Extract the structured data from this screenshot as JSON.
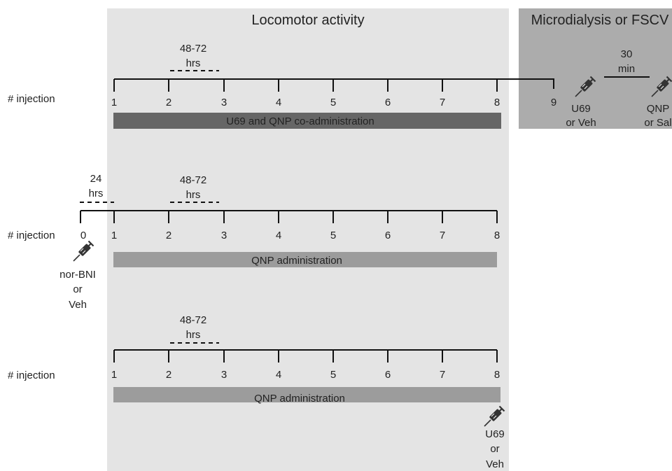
{
  "titles": {
    "locomotor": "Locomotor activity",
    "micro": "Microdialysis or FSCV"
  },
  "panel1": {
    "axis_label": "# injection",
    "interval": [
      "48-72",
      "hrs"
    ],
    "ticks": [
      "1",
      "2",
      "3",
      "4",
      "5",
      "6",
      "7",
      "8"
    ],
    "extra_tick": "9",
    "bar_label": "U69 and QNP co-administration",
    "micro_interval": [
      "30",
      "min"
    ],
    "drug1": [
      "U69",
      "or Veh"
    ],
    "drug2": [
      "QNP",
      "or Sal"
    ]
  },
  "panel2": {
    "axis_label": "# injection",
    "pre_interval": [
      "24",
      "hrs"
    ],
    "interval": [
      "48-72",
      "hrs"
    ],
    "ticks": [
      "0",
      "1",
      "2",
      "3",
      "4",
      "5",
      "6",
      "7",
      "8"
    ],
    "bar_label": "QNP administration",
    "drug": [
      "nor-BNI",
      "or",
      "Veh"
    ]
  },
  "panel3": {
    "axis_label": "# injection",
    "interval": [
      "48-72",
      "hrs"
    ],
    "ticks": [
      "1",
      "2",
      "3",
      "4",
      "5",
      "6",
      "7",
      "8"
    ],
    "bar_label": "QNP administration",
    "drug": [
      "U69",
      "or",
      "Veh"
    ]
  },
  "colors": {
    "locomotor_bg": "#e4e4e4",
    "micro_bg": "#acacac",
    "dark_bar": "#666666",
    "light_bar": "#9c9c9c",
    "syringe": "#333333"
  },
  "icons": {
    "syringe": "syringe-icon"
  }
}
